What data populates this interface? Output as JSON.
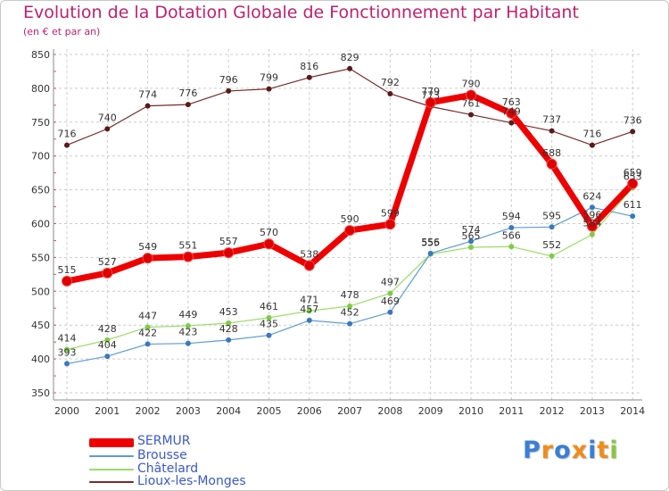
{
  "chart_data": {
    "type": "line",
    "title": "Evolution de la Dotation Globale de Fonctionnement par Habitant",
    "subtitle": "(en € et par an)",
    "xlabel": "",
    "ylabel": "",
    "categories": [
      "2000",
      "2001",
      "2002",
      "2003",
      "2004",
      "2005",
      "2006",
      "2007",
      "2008",
      "2009",
      "2010",
      "2011",
      "2012",
      "2013",
      "2014"
    ],
    "ylim": [
      350,
      850
    ],
    "yticks": [
      "350",
      "400",
      "450",
      "500",
      "550",
      "600",
      "650",
      "700",
      "750",
      "800",
      "850"
    ],
    "grid": true,
    "legend_position": "bottom-left",
    "series": [
      {
        "name": "SERMUR",
        "color": "#ee0000",
        "values": [
          515,
          527,
          549,
          551,
          557,
          570,
          538,
          590,
          599,
          779,
          790,
          763,
          688,
          596,
          659
        ]
      },
      {
        "name": "Brousse",
        "color": "#5b9bd5",
        "values": [
          393,
          404,
          422,
          423,
          428,
          435,
          457,
          452,
          469,
          556,
          574,
          594,
          595,
          624,
          611
        ]
      },
      {
        "name": "Châtelard",
        "color": "#99dd66",
        "values": [
          414,
          428,
          447,
          449,
          453,
          461,
          471,
          478,
          497,
          555,
          565,
          566,
          552,
          584,
          653
        ]
      },
      {
        "name": "Lioux-les-Monges",
        "color": "#7a2a2a",
        "values": [
          716,
          740,
          774,
          776,
          796,
          799,
          816,
          829,
          792,
          773,
          761,
          749,
          737,
          716,
          736
        ]
      }
    ]
  },
  "logo": {
    "letters": [
      "P",
      "r",
      "o",
      "x",
      "i",
      "t",
      "i"
    ],
    "colors": [
      "#3a7fd5",
      "#f08c1a",
      "#3a7fd5",
      "#f08c1a",
      "#3a7fd5",
      "#f08c1a",
      "#8cc63f"
    ]
  }
}
